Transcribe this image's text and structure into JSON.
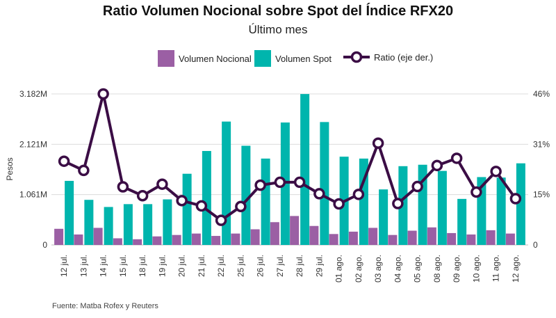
{
  "header": {
    "title": "Ratio Volumen Nocional sobre Spot del Índice RFX20",
    "subtitle": "Último mes"
  },
  "legend": {
    "items": [
      "Volumen Nocional",
      "Volumen Spot",
      "Ratio (eje der.)"
    ]
  },
  "source": "Fuente: Matba Rofex y Reuters",
  "colors": {
    "nocional": "#9b5fa4",
    "spot": "#00b5ad",
    "ratio_line": "#3b0d45",
    "gridline": "#dcdcdc"
  },
  "chart_data": {
    "type": "bar",
    "categories": [
      "12 jul.",
      "13 jul.",
      "14 jul.",
      "15 jul.",
      "18 jul.",
      "19 jul.",
      "20 jul.",
      "21 jul.",
      "22 jul.",
      "25 jul.",
      "26 jul.",
      "27 jul.",
      "28 jul.",
      "29 jul.",
      "01 ago.",
      "02 ago.",
      "03 ago.",
      "04 ago.",
      "05 ago.",
      "08 ago.",
      "09 ago.",
      "10 ago.",
      "11 ago.",
      "12 ago."
    ],
    "series": [
      {
        "name": "Volumen Nocional",
        "type": "bar",
        "axis": "left",
        "values": [
          0.34,
          0.22,
          0.36,
          0.14,
          0.12,
          0.18,
          0.21,
          0.24,
          0.19,
          0.24,
          0.33,
          0.48,
          0.61,
          0.4,
          0.23,
          0.28,
          0.36,
          0.21,
          0.3,
          0.37,
          0.25,
          0.22,
          0.31,
          0.24
        ]
      },
      {
        "name": "Volumen Spot",
        "type": "bar",
        "axis": "left",
        "values": [
          1.35,
          0.95,
          0.8,
          0.86,
          0.86,
          0.96,
          1.5,
          1.98,
          2.6,
          2.09,
          1.82,
          2.58,
          3.18,
          2.59,
          1.86,
          1.82,
          1.17,
          1.66,
          1.69,
          1.56,
          0.97,
          1.43,
          1.42,
          1.72
        ]
      },
      {
        "name": "Ratio (eje der.)",
        "type": "line",
        "axis": "right",
        "values": [
          25.5,
          22.7,
          46.0,
          17.7,
          15.0,
          18.5,
          13.5,
          11.9,
          7.5,
          11.7,
          18.2,
          19.1,
          19.1,
          15.6,
          12.5,
          15.4,
          31.0,
          12.6,
          17.8,
          24.2,
          26.4,
          16.1,
          22.4,
          14.1
        ]
      }
    ],
    "y_left": {
      "label": "Pesos",
      "ticks": [
        "0",
        "1.061M",
        "2.121M",
        "3.182M"
      ],
      "tick_values": [
        0,
        1.061,
        2.121,
        3.182
      ],
      "range": [
        0,
        3.182
      ]
    },
    "y_right": {
      "ticks": [
        "0",
        "15%",
        "31%",
        "46%"
      ],
      "tick_values": [
        0,
        15.33,
        30.67,
        46
      ],
      "range": [
        0,
        46
      ]
    },
    "grid": true,
    "legend_position": "top"
  }
}
